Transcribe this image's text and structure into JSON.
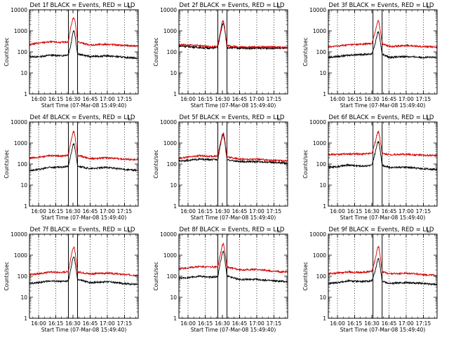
{
  "figure": {
    "x_axis_title": "Start Time (07-Mar-08 15:49:40)",
    "y_axis_title": "Counts/sec",
    "x_tick_labels": [
      "16:00",
      "16:15",
      "16:30",
      "16:45",
      "17:00",
      "17:15"
    ],
    "y_tick_labels": [
      "1",
      "10",
      "100",
      "1000",
      "10000"
    ],
    "colors": {
      "events": "#000000",
      "lld": "#d40000",
      "background": "#ffffff",
      "frame": "#000000"
    }
  },
  "chart_data": [
    {
      "type": "line",
      "title": "Det 1f BLACK = Events, RED = LLD",
      "xlabel": "Start Time (07-Mar-08 15:49:40)",
      "ylabel": "Counts/sec",
      "xlim": [
        "15:52",
        "17:27"
      ],
      "ylim": [
        1,
        10000
      ],
      "y_scale": "log",
      "vertical_dotted_lines": [
        "16:00",
        "16:15",
        "16:45",
        "17:00",
        "17:15"
      ],
      "vertical_solid_lines": [
        "16:26",
        "16:34"
      ],
      "series": [
        {
          "name": "BLACK = Events",
          "color": "#000000",
          "x": [
            "15:52",
            "16:00",
            "16:10",
            "16:20",
            "16:26",
            "16:28",
            "16:30",
            "16:31",
            "16:32",
            "16:34",
            "16:45",
            "17:00",
            "17:15",
            "17:27"
          ],
          "values": [
            60,
            58,
            70,
            65,
            75,
            200,
            900,
            1000,
            500,
            80,
            60,
            65,
            55,
            50
          ]
        },
        {
          "name": "RED = LLD",
          "color": "#d40000",
          "x": [
            "15:52",
            "16:00",
            "16:10",
            "16:20",
            "16:26",
            "16:28",
            "16:30",
            "16:31",
            "16:32",
            "16:34",
            "16:45",
            "17:00",
            "17:15",
            "17:27"
          ],
          "values": [
            230,
            260,
            300,
            280,
            300,
            1500,
            4000,
            4200,
            2500,
            300,
            210,
            230,
            200,
            190
          ]
        }
      ]
    },
    {
      "type": "line",
      "title": "Det 2f BLACK = Events, RED = LLD",
      "xlabel": "Start Time (07-Mar-08 15:49:40)",
      "ylabel": "Counts/sec",
      "xlim": [
        "15:52",
        "17:27"
      ],
      "ylim": [
        1,
        10000
      ],
      "y_scale": "log",
      "vertical_dotted_lines": [
        "16:00",
        "16:15",
        "16:45",
        "17:00",
        "17:15"
      ],
      "vertical_solid_lines": [
        "16:26",
        "16:34"
      ],
      "series": [
        {
          "name": "BLACK = Events",
          "color": "#000000",
          "x": [
            "15:52",
            "16:00",
            "16:10",
            "16:20",
            "16:26",
            "16:28",
            "16:30",
            "16:31",
            "16:32",
            "16:34",
            "16:45",
            "17:00",
            "17:15",
            "17:27"
          ],
          "values": [
            190,
            180,
            160,
            150,
            170,
            600,
            2000,
            2300,
            1200,
            160,
            150,
            150,
            150,
            150
          ]
        },
        {
          "name": "RED = LLD",
          "color": "#d40000",
          "x": [
            "15:52",
            "16:00",
            "16:10",
            "16:20",
            "16:26",
            "16:28",
            "16:30",
            "16:31",
            "16:32",
            "16:34",
            "16:45",
            "17:00",
            "17:15",
            "17:27"
          ],
          "values": [
            220,
            210,
            200,
            170,
            190,
            800,
            2800,
            3000,
            1500,
            200,
            170,
            170,
            170,
            160
          ]
        }
      ]
    },
    {
      "type": "line",
      "title": "Det 3f BLACK = Events, RED = LLD",
      "xlabel": "Start Time (07-Mar-08 15:49:40)",
      "ylabel": "Counts/sec",
      "xlim": [
        "15:52",
        "17:27"
      ],
      "ylim": [
        1,
        10000
      ],
      "y_scale": "log",
      "vertical_dotted_lines": [
        "16:00",
        "16:15",
        "16:45",
        "17:00",
        "17:15"
      ],
      "vertical_solid_lines": [
        "16:31",
        "16:39"
      ],
      "series": [
        {
          "name": "BLACK = Events",
          "color": "#000000",
          "x": [
            "15:52",
            "16:00",
            "16:10",
            "16:20",
            "16:30",
            "16:33",
            "16:35",
            "16:36",
            "16:37",
            "16:39",
            "16:45",
            "17:00",
            "17:15",
            "17:27"
          ],
          "values": [
            55,
            60,
            70,
            75,
            80,
            250,
            800,
            900,
            400,
            80,
            55,
            60,
            55,
            55
          ]
        },
        {
          "name": "RED = LLD",
          "color": "#d40000",
          "x": [
            "15:52",
            "16:00",
            "16:10",
            "16:20",
            "16:30",
            "16:33",
            "16:35",
            "16:36",
            "16:37",
            "16:39",
            "16:45",
            "17:00",
            "17:15",
            "17:27"
          ],
          "values": [
            170,
            190,
            220,
            230,
            250,
            900,
            2800,
            3000,
            1500,
            250,
            180,
            200,
            180,
            170
          ]
        }
      ]
    },
    {
      "type": "line",
      "title": "Det 4f BLACK = Events, RED = LLD",
      "xlabel": "Start Time (07-Mar-08 15:49:40)",
      "ylabel": "Counts/sec",
      "xlim": [
        "15:52",
        "17:27"
      ],
      "ylim": [
        1,
        10000
      ],
      "y_scale": "log",
      "vertical_dotted_lines": [
        "16:00",
        "16:15",
        "16:45",
        "17:00",
        "17:15"
      ],
      "vertical_solid_lines": [
        "16:26",
        "16:34"
      ],
      "series": [
        {
          "name": "BLACK = Events",
          "color": "#000000",
          "x": [
            "15:52",
            "16:00",
            "16:10",
            "16:20",
            "16:26",
            "16:28",
            "16:30",
            "16:31",
            "16:32",
            "16:34",
            "16:45",
            "17:00",
            "17:15",
            "17:27"
          ],
          "values": [
            50,
            55,
            70,
            70,
            80,
            250,
            800,
            900,
            450,
            80,
            60,
            70,
            55,
            50
          ]
        },
        {
          "name": "RED = LLD",
          "color": "#d40000",
          "x": [
            "15:52",
            "16:00",
            "16:10",
            "16:20",
            "16:26",
            "16:28",
            "16:30",
            "16:31",
            "16:32",
            "16:34",
            "16:45",
            "17:00",
            "17:15",
            "17:27"
          ],
          "values": [
            190,
            210,
            250,
            240,
            260,
            1000,
            3200,
            3500,
            1700,
            260,
            180,
            200,
            170,
            160
          ]
        }
      ]
    },
    {
      "type": "line",
      "title": "Det 5f BLACK = Events, RED = LLD",
      "xlabel": "Start Time (07-Mar-08 15:49:40)",
      "ylabel": "Counts/sec",
      "xlim": [
        "15:52",
        "17:27"
      ],
      "ylim": [
        1,
        10000
      ],
      "y_scale": "log",
      "vertical_dotted_lines": [
        "16:00",
        "16:15",
        "16:45",
        "17:00",
        "17:15"
      ],
      "vertical_solid_lines": [
        "16:26",
        "16:34"
      ],
      "series": [
        {
          "name": "BLACK = Events",
          "color": "#000000",
          "x": [
            "15:52",
            "16:00",
            "16:10",
            "16:20",
            "16:26",
            "16:28",
            "16:30",
            "16:31",
            "16:32",
            "16:34",
            "16:45",
            "17:00",
            "17:15",
            "17:27"
          ],
          "values": [
            140,
            150,
            170,
            160,
            170,
            700,
            2200,
            2500,
            1200,
            160,
            130,
            130,
            120,
            110
          ]
        },
        {
          "name": "RED = LLD",
          "color": "#d40000",
          "x": [
            "15:52",
            "16:00",
            "16:10",
            "16:20",
            "16:26",
            "16:28",
            "16:30",
            "16:31",
            "16:32",
            "16:34",
            "16:45",
            "17:00",
            "17:15",
            "17:27"
          ],
          "values": [
            190,
            210,
            250,
            230,
            240,
            900,
            2800,
            3000,
            1500,
            220,
            170,
            170,
            150,
            140
          ]
        }
      ]
    },
    {
      "type": "line",
      "title": "Det 6f BLACK = Events, RED = LLD",
      "xlabel": "Start Time (07-Mar-08 15:49:40)",
      "ylabel": "Counts/sec",
      "xlim": [
        "15:52",
        "17:27"
      ],
      "ylim": [
        1,
        10000
      ],
      "y_scale": "log",
      "vertical_dotted_lines": [
        "16:00",
        "16:15",
        "16:45",
        "17:00",
        "17:15"
      ],
      "vertical_solid_lines": [
        "16:31",
        "16:39"
      ],
      "series": [
        {
          "name": "BLACK = Events",
          "color": "#000000",
          "x": [
            "15:52",
            "16:00",
            "16:10",
            "16:20",
            "16:30",
            "16:33",
            "16:35",
            "16:36",
            "16:37",
            "16:39",
            "16:45",
            "17:00",
            "17:15",
            "17:27"
          ],
          "values": [
            70,
            75,
            90,
            80,
            85,
            350,
            1100,
            1200,
            600,
            90,
            70,
            70,
            60,
            55
          ]
        },
        {
          "name": "RED = LLD",
          "color": "#d40000",
          "x": [
            "15:52",
            "16:00",
            "16:10",
            "16:20",
            "16:30",
            "16:33",
            "16:35",
            "16:36",
            "16:37",
            "16:39",
            "16:45",
            "17:00",
            "17:15",
            "17:27"
          ],
          "values": [
            280,
            290,
            300,
            300,
            320,
            1100,
            3200,
            3500,
            1800,
            320,
            280,
            290,
            260,
            250
          ]
        }
      ]
    },
    {
      "type": "line",
      "title": "Det 7f BLACK = Events, RED = LLD",
      "xlabel": "Start Time (07-Mar-08 15:49:40)",
      "ylabel": "Counts/sec",
      "xlim": [
        "15:52",
        "17:27"
      ],
      "ylim": [
        1,
        10000
      ],
      "y_scale": "log",
      "vertical_dotted_lines": [
        "16:00",
        "16:15",
        "16:45",
        "17:00",
        "17:15"
      ],
      "vertical_solid_lines": [
        "16:26",
        "16:34"
      ],
      "series": [
        {
          "name": "BLACK = Events",
          "color": "#000000",
          "x": [
            "15:52",
            "16:00",
            "16:10",
            "16:20",
            "16:26",
            "16:28",
            "16:30",
            "16:31",
            "16:32",
            "16:34",
            "16:45",
            "17:00",
            "17:15",
            "17:27"
          ],
          "values": [
            45,
            50,
            60,
            55,
            60,
            200,
            750,
            850,
            400,
            70,
            50,
            55,
            45,
            40
          ]
        },
        {
          "name": "RED = LLD",
          "color": "#d40000",
          "x": [
            "15:52",
            "16:00",
            "16:10",
            "16:20",
            "16:26",
            "16:28",
            "16:30",
            "16:31",
            "16:32",
            "16:34",
            "16:45",
            "17:00",
            "17:15",
            "17:27"
          ],
          "values": [
            120,
            130,
            160,
            150,
            170,
            700,
            2200,
            2400,
            1200,
            160,
            130,
            140,
            120,
            110
          ]
        }
      ]
    },
    {
      "type": "line",
      "title": "Det 8f BLACK = Events, RED = LLD",
      "xlabel": "Start Time (07-Mar-08 15:49:40)",
      "ylabel": "Counts/sec",
      "xlim": [
        "15:52",
        "17:27"
      ],
      "ylim": [
        1,
        10000
      ],
      "y_scale": "log",
      "vertical_dotted_lines": [
        "16:00",
        "16:15",
        "16:45",
        "17:00",
        "17:15"
      ],
      "vertical_solid_lines": [
        "16:26",
        "16:34"
      ],
      "series": [
        {
          "name": "BLACK = Events",
          "color": "#000000",
          "x": [
            "15:52",
            "16:00",
            "16:10",
            "16:20",
            "16:26",
            "16:28",
            "16:30",
            "16:31",
            "16:32",
            "16:34",
            "16:45",
            "17:00",
            "17:15",
            "17:27"
          ],
          "values": [
            80,
            85,
            100,
            90,
            95,
            400,
            1300,
            1500,
            700,
            100,
            70,
            70,
            60,
            55
          ]
        },
        {
          "name": "RED = LLD",
          "color": "#d40000",
          "x": [
            "15:52",
            "16:00",
            "16:10",
            "16:20",
            "16:26",
            "16:28",
            "16:30",
            "16:31",
            "16:32",
            "16:34",
            "16:45",
            "17:00",
            "17:15",
            "17:27"
          ],
          "values": [
            230,
            250,
            290,
            270,
            280,
            1000,
            3200,
            3500,
            1800,
            280,
            200,
            210,
            170,
            160
          ]
        }
      ]
    },
    {
      "type": "line",
      "title": "Det 9f BLACK = Events, RED = LLD",
      "xlabel": "Start Time (07-Mar-08 15:49:40)",
      "ylabel": "Counts/sec",
      "xlim": [
        "15:52",
        "17:27"
      ],
      "ylim": [
        1,
        10000
      ],
      "y_scale": "log",
      "vertical_dotted_lines": [
        "16:00",
        "16:15",
        "16:45",
        "17:00",
        "17:15"
      ],
      "vertical_solid_lines": [
        "16:31",
        "16:39"
      ],
      "series": [
        {
          "name": "BLACK = Events",
          "color": "#000000",
          "x": [
            "15:52",
            "16:00",
            "16:10",
            "16:20",
            "16:30",
            "16:33",
            "16:35",
            "16:36",
            "16:37",
            "16:39",
            "16:45",
            "17:00",
            "17:15",
            "17:27"
          ],
          "values": [
            45,
            50,
            60,
            55,
            60,
            180,
            600,
            700,
            350,
            60,
            45,
            50,
            45,
            40
          ]
        },
        {
          "name": "RED = LLD",
          "color": "#d40000",
          "x": [
            "15:52",
            "16:00",
            "16:10",
            "16:20",
            "16:30",
            "16:33",
            "16:35",
            "16:36",
            "16:37",
            "16:39",
            "16:45",
            "17:00",
            "17:15",
            "17:27"
          ],
          "values": [
            130,
            140,
            160,
            150,
            170,
            650,
            2200,
            2500,
            1200,
            170,
            130,
            140,
            120,
            110
          ]
        }
      ]
    }
  ]
}
